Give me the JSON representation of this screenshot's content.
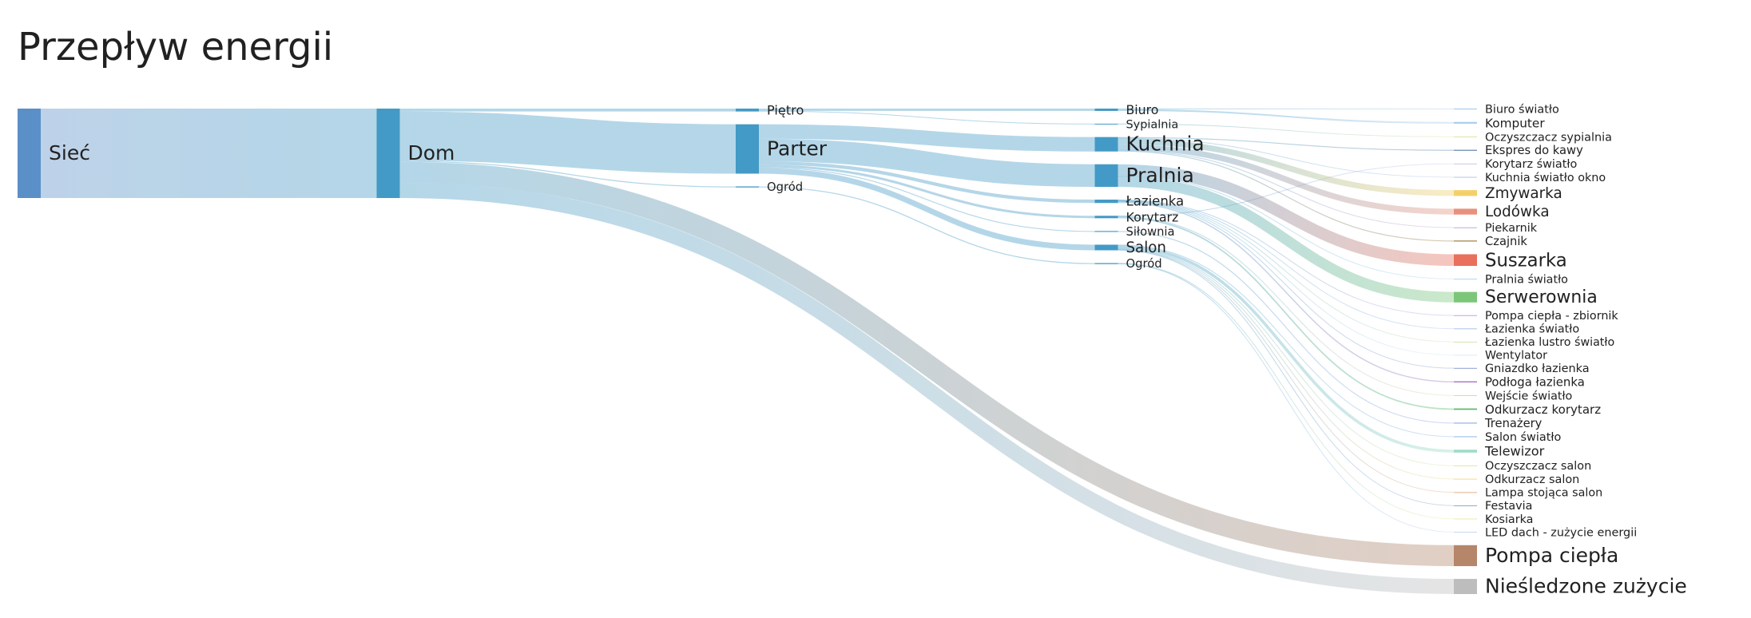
{
  "chart_data": {
    "type": "sankey",
    "title": "Przepływ energii",
    "nodes": [
      {
        "name": "Sieć",
        "color": "#5b8fc7"
      },
      {
        "name": "Dom",
        "color": "#439ac6"
      },
      {
        "name": "Piętro",
        "color": "#439ac6"
      },
      {
        "name": "Parter",
        "color": "#439ac6"
      },
      {
        "name": "Ogród",
        "color": "#439ac6"
      },
      {
        "name": "Biuro",
        "color": "#439ac6"
      },
      {
        "name": "Sypialnia",
        "color": "#439ac6"
      },
      {
        "name": "Kuchnia",
        "color": "#439ac6"
      },
      {
        "name": "Pralnia",
        "color": "#439ac6"
      },
      {
        "name": "Łazienka",
        "color": "#439ac6"
      },
      {
        "name": "Korytarz",
        "color": "#439ac6"
      },
      {
        "name": "Siłownia",
        "color": "#439ac6"
      },
      {
        "name": "Salon",
        "color": "#439ac6"
      },
      {
        "name": "Ogród",
        "color": "#439ac6"
      },
      {
        "name": "Biuro światło",
        "color": "#9fc3e6"
      },
      {
        "name": "Komputer",
        "color": "#a8ccf0"
      },
      {
        "name": "Oczyszczacz sypialnia",
        "color": "#d6e8a0"
      },
      {
        "name": "Ekspres do kawy",
        "color": "#5a7fa8"
      },
      {
        "name": "Korytarz światło",
        "color": "#c9c9e8"
      },
      {
        "name": "Kuchnia światło okno",
        "color": "#b8c8e0"
      },
      {
        "name": "Zmywarka",
        "color": "#f3d069"
      },
      {
        "name": "Lodówka",
        "color": "#e8907c"
      },
      {
        "name": "Piekarnik",
        "color": "#c9a7d8"
      },
      {
        "name": "Czajnik",
        "color": "#9a7a3a"
      },
      {
        "name": "Suszarka",
        "color": "#e8705c"
      },
      {
        "name": "Pralnia światło",
        "color": "#b6d7ee"
      },
      {
        "name": "Serwerownia",
        "color": "#7cc679"
      },
      {
        "name": "Pompa ciepła - zbiornik",
        "color": "#b9a6df"
      },
      {
        "name": "Łazienka światło",
        "color": "#a7c3ea"
      },
      {
        "name": "Łazienka lustro światło",
        "color": "#cfe3b0"
      },
      {
        "name": "Wentylator",
        "color": "#d9ecf5"
      },
      {
        "name": "Gniazdko łazienka",
        "color": "#8d9fd0"
      },
      {
        "name": "Podłoga łazienka",
        "color": "#a879c6"
      },
      {
        "name": "Wejście światło",
        "color": "#e7d4a6"
      },
      {
        "name": "Odkurzacz korytarz",
        "color": "#5dbb6d"
      },
      {
        "name": "Trenażery",
        "color": "#9aa9e3"
      },
      {
        "name": "Salon światło",
        "color": "#8fb7e0"
      },
      {
        "name": "Telewizor",
        "color": "#9fdcc6"
      },
      {
        "name": "Oczyszczacz salon",
        "color": "#dde8a6"
      },
      {
        "name": "Odkurzacz salon",
        "color": "#f0d98a"
      },
      {
        "name": "Lampa stojąca salon",
        "color": "#e4ae8c"
      },
      {
        "name": "Festavia",
        "color": "#8aa6c8"
      },
      {
        "name": "Kosiarka",
        "color": "#e9eea8"
      },
      {
        "name": "LED dach - zużycie energii",
        "color": "#c6d6ee"
      },
      {
        "name": "Pompa ciepła",
        "color": "#b5866a"
      },
      {
        "name": "Nieśledzone zużycie",
        "color": "#bdbdbd"
      }
    ],
    "links": [
      {
        "source": 0,
        "target": 1,
        "value": 76.8
      },
      {
        "source": 1,
        "target": 2,
        "value": 2.5
      },
      {
        "source": 1,
        "target": 3,
        "value": 42.4
      },
      {
        "source": 1,
        "target": 4,
        "value": 0.9
      },
      {
        "source": 1,
        "target": 44,
        "value": 18
      },
      {
        "source": 1,
        "target": 45,
        "value": 13
      },
      {
        "source": 2,
        "target": 5,
        "value": 2
      },
      {
        "source": 2,
        "target": 6,
        "value": 0.5
      },
      {
        "source": 3,
        "target": 7,
        "value": 12.4
      },
      {
        "source": 3,
        "target": 8,
        "value": 19.4
      },
      {
        "source": 3,
        "target": 9,
        "value": 2.9
      },
      {
        "source": 3,
        "target": 10,
        "value": 2.1
      },
      {
        "source": 3,
        "target": 11,
        "value": 0.8
      },
      {
        "source": 3,
        "target": 12,
        "value": 4.8
      },
      {
        "source": 4,
        "target": 13,
        "value": 0.9
      },
      {
        "source": 5,
        "target": 14,
        "value": 0.5
      },
      {
        "source": 5,
        "target": 15,
        "value": 1.5
      },
      {
        "source": 6,
        "target": 16,
        "value": 0.5
      },
      {
        "source": 7,
        "target": 17,
        "value": 0.8
      },
      {
        "source": 10,
        "target": 18,
        "value": 0.5
      },
      {
        "source": 7,
        "target": 19,
        "value": 0.4
      },
      {
        "source": 7,
        "target": 20,
        "value": 5
      },
      {
        "source": 7,
        "target": 21,
        "value": 5
      },
      {
        "source": 7,
        "target": 22,
        "value": 0.4
      },
      {
        "source": 7,
        "target": 23,
        "value": 0.8
      },
      {
        "source": 8,
        "target": 24,
        "value": 10
      },
      {
        "source": 8,
        "target": 25,
        "value": 0.4
      },
      {
        "source": 8,
        "target": 26,
        "value": 9
      },
      {
        "source": 9,
        "target": 27,
        "value": 0.4
      },
      {
        "source": 9,
        "target": 28,
        "value": 0.4
      },
      {
        "source": 9,
        "target": 29,
        "value": 0.3
      },
      {
        "source": 9,
        "target": 30,
        "value": 0.3
      },
      {
        "source": 9,
        "target": 31,
        "value": 0.5
      },
      {
        "source": 9,
        "target": 32,
        "value": 1
      },
      {
        "source": 10,
        "target": 33,
        "value": 0.4
      },
      {
        "source": 10,
        "target": 34,
        "value": 1.2
      },
      {
        "source": 11,
        "target": 35,
        "value": 0.8
      },
      {
        "source": 12,
        "target": 36,
        "value": 0.5
      },
      {
        "source": 12,
        "target": 37,
        "value": 2.5
      },
      {
        "source": 12,
        "target": 38,
        "value": 0.5
      },
      {
        "source": 12,
        "target": 39,
        "value": 0.5
      },
      {
        "source": 12,
        "target": 40,
        "value": 0.4
      },
      {
        "source": 12,
        "target": 41,
        "value": 0.4
      },
      {
        "source": 13,
        "target": 42,
        "value": 0.4
      },
      {
        "source": 13,
        "target": 43,
        "value": 0.5
      }
    ]
  }
}
